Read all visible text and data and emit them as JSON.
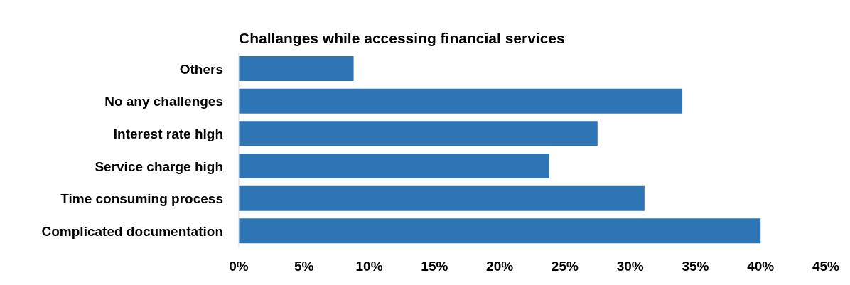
{
  "chart_data": {
    "type": "bar",
    "orientation": "horizontal",
    "title": "Challanges while accessing financial services",
    "categories": [
      "Others ",
      "No any challenges",
      "Interest rate high",
      "Service charge high",
      "Time consuming process",
      "Complicated documentation"
    ],
    "values": [
      8.8,
      34.0,
      27.5,
      23.8,
      31.1,
      40.0
    ],
    "color": "#2e75b6",
    "xlim": [
      0,
      45
    ],
    "xticks": [
      {
        "value": 0,
        "label": "0%"
      },
      {
        "value": 5,
        "label": "5%"
      },
      {
        "value": 10,
        "label": "10%"
      },
      {
        "value": 15,
        "label": "15%"
      },
      {
        "value": 20,
        "label": "20%"
      },
      {
        "value": 25,
        "label": "25%"
      },
      {
        "value": 30,
        "label": "30%"
      },
      {
        "value": 35,
        "label": "35%"
      },
      {
        "value": 40,
        "label": "40%"
      },
      {
        "value": 45,
        "label": "45%"
      }
    ],
    "grid": false,
    "legend": false
  }
}
